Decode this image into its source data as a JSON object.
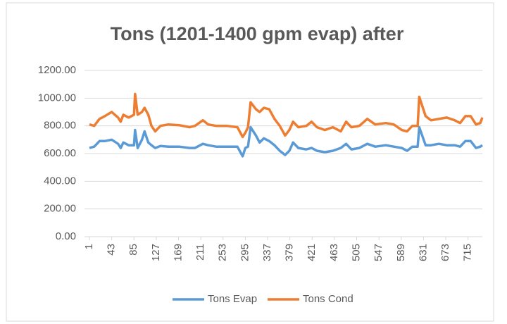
{
  "chart_data": {
    "type": "line",
    "title": "Tons (1201-1400 gpm evap) after",
    "x": [
      1,
      10,
      20,
      30,
      43,
      55,
      60,
      65,
      75,
      85,
      87,
      92,
      100,
      105,
      112,
      118,
      125,
      135,
      150,
      170,
      190,
      200,
      215,
      225,
      240,
      260,
      280,
      290,
      295,
      300,
      305,
      315,
      322,
      330,
      340,
      350,
      360,
      370,
      378,
      385,
      395,
      410,
      420,
      430,
      445,
      460,
      475,
      485,
      495,
      510,
      525,
      540,
      560,
      575,
      590,
      600,
      610,
      620,
      623,
      635,
      645,
      660,
      675,
      690,
      700,
      710,
      720,
      730,
      738,
      742
    ],
    "series": [
      {
        "name": "Tons Evap",
        "color": "#5b9bd5",
        "values": [
          640,
          650,
          690,
          690,
          700,
          670,
          640,
          680,
          660,
          660,
          770,
          640,
          700,
          760,
          680,
          660,
          640,
          655,
          650,
          650,
          640,
          640,
          670,
          660,
          650,
          650,
          650,
          580,
          640,
          650,
          790,
          730,
          680,
          710,
          690,
          660,
          620,
          590,
          620,
          680,
          640,
          630,
          640,
          620,
          610,
          620,
          640,
          670,
          630,
          640,
          670,
          650,
          660,
          650,
          640,
          620,
          650,
          650,
          790,
          660,
          660,
          670,
          660,
          660,
          650,
          690,
          690,
          640,
          650,
          660
        ]
      },
      {
        "name": "Tons Cond",
        "color": "#ed7d31",
        "values": [
          810,
          800,
          850,
          870,
          900,
          860,
          830,
          880,
          860,
          880,
          1030,
          880,
          900,
          930,
          880,
          800,
          760,
          800,
          810,
          805,
          790,
          800,
          840,
          810,
          800,
          800,
          790,
          720,
          750,
          790,
          970,
          920,
          900,
          930,
          920,
          850,
          800,
          730,
          770,
          830,
          790,
          800,
          830,
          790,
          770,
          790,
          760,
          830,
          790,
          800,
          850,
          810,
          820,
          810,
          770,
          760,
          800,
          800,
          1010,
          870,
          840,
          850,
          860,
          840,
          820,
          870,
          870,
          810,
          820,
          860
        ]
      }
    ],
    "xlim": [
      1,
      742
    ],
    "xticks": [
      1,
      43,
      85,
      127,
      169,
      211,
      253,
      295,
      337,
      379,
      421,
      463,
      505,
      547,
      589,
      631,
      673,
      715
    ],
    "ylim": [
      0,
      1200
    ],
    "yticks": [
      {
        "value": 0,
        "label": "0.00"
      },
      {
        "value": 200,
        "label": "200.00"
      },
      {
        "value": 400,
        "label": "400.00"
      },
      {
        "value": 600,
        "label": "600.00"
      },
      {
        "value": 800,
        "label": "800.00"
      },
      {
        "value": 1000,
        "label": "1000.00"
      },
      {
        "value": 1200,
        "label": "1200.00"
      }
    ],
    "grid": true,
    "legend": "bottom"
  }
}
